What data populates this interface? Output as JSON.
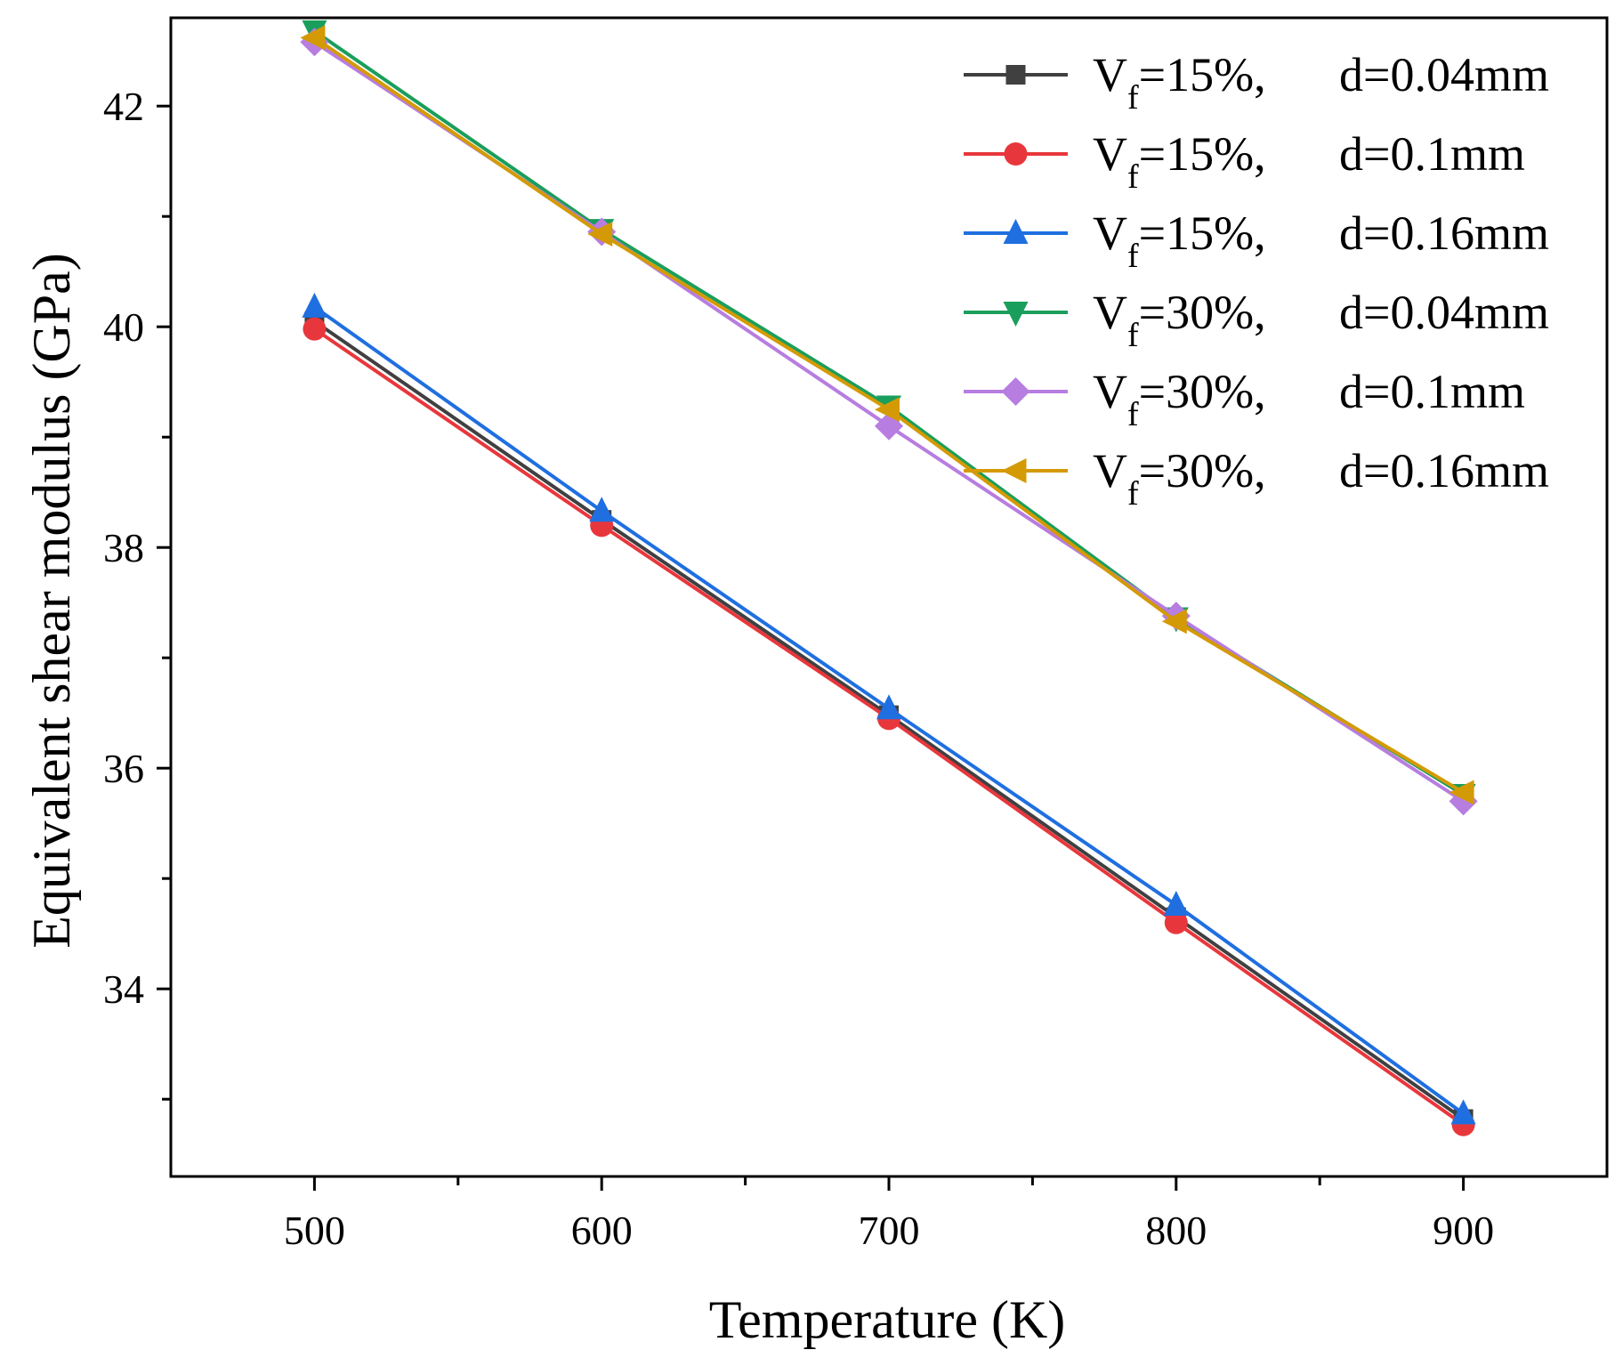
{
  "chart_data": {
    "type": "line",
    "title": "",
    "xlabel": "Temperature (K)",
    "ylabel": "Equivalent shear modulus (GPa)",
    "x": [
      500,
      600,
      700,
      800,
      900
    ],
    "xlim": [
      450,
      950
    ],
    "ylim": [
      32.3,
      42.8
    ],
    "xticks": [
      "500",
      "600",
      "700",
      "800",
      "900"
    ],
    "yticks": [
      "34",
      "36",
      "38",
      "40",
      "42"
    ],
    "legend_position": "top-right",
    "series": [
      {
        "name": "15%,",
        "prefix": "V",
        "subscript": "f",
        "eq": "=",
        "d_label": "d=0.04mm",
        "marker": "square",
        "color": "#404040",
        "values": [
          40.05,
          38.25,
          36.48,
          34.65,
          32.82
        ]
      },
      {
        "name": "15%,",
        "prefix": "V",
        "subscript": "f",
        "eq": "=",
        "d_label": "d=0.1mm",
        "marker": "circle",
        "color": "#e8373c",
        "values": [
          39.98,
          38.2,
          36.45,
          34.6,
          32.77
        ]
      },
      {
        "name": "15%,",
        "prefix": "V",
        "subscript": "f",
        "eq": "=",
        "d_label": "d=0.16mm",
        "marker": "triangle-up",
        "color": "#1f6fe0",
        "values": [
          40.18,
          38.33,
          36.54,
          34.76,
          32.87
        ]
      },
      {
        "name": "30%,",
        "prefix": "V",
        "subscript": "f",
        "eq": "=",
        "d_label": "d=0.04mm",
        "marker": "triangle-down",
        "color": "#1a9e5c",
        "values": [
          42.68,
          40.88,
          39.28,
          37.36,
          35.76
        ]
      },
      {
        "name": "30%,",
        "prefix": "V",
        "subscript": "f",
        "eq": "=",
        "d_label": "d=0.1mm",
        "marker": "diamond",
        "color": "#b77de0",
        "values": [
          42.58,
          40.86,
          39.1,
          37.38,
          35.7
        ]
      },
      {
        "name": "30%,",
        "prefix": "V",
        "subscript": "f",
        "eq": "=",
        "d_label": "d=0.16mm",
        "marker": "triangle-left",
        "color": "#d49a05",
        "values": [
          42.62,
          40.84,
          39.25,
          37.33,
          35.78
        ]
      }
    ]
  }
}
